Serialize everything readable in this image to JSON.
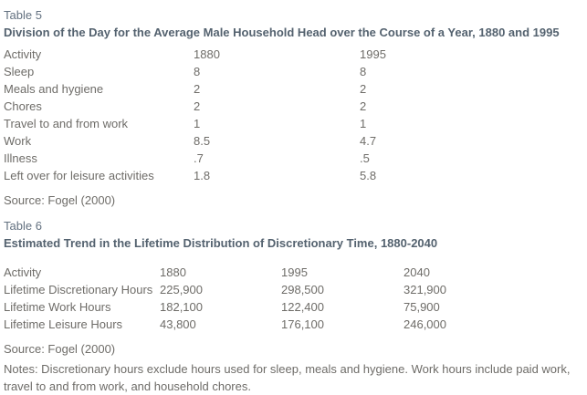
{
  "colors": {
    "background": "#ffffff",
    "body_text": "#6e6c68",
    "table_label": "#637180",
    "table_title": "#54626f"
  },
  "table5": {
    "label": "Table 5",
    "title": "Division of the Day for the Average Male Household Head over the Course of a Year, 1880 and 1995",
    "columns": [
      "Activity",
      "1880",
      "1995"
    ],
    "rows": [
      [
        "Sleep",
        "8",
        "8"
      ],
      [
        "Meals and hygiene",
        "2",
        "2"
      ],
      [
        "Chores",
        "2",
        "2"
      ],
      [
        "Travel to and from work",
        "1",
        "1"
      ],
      [
        "Work",
        "8.5",
        "4.7"
      ],
      [
        "Illness",
        ".7",
        ".5"
      ],
      [
        "Left over for leisure activities",
        "1.8",
        "5.8"
      ]
    ],
    "source": "Source: Fogel (2000)"
  },
  "table6": {
    "label": "Table 6",
    "title": "Estimated Trend in the Lifetime Distribution of Discretionary Time, 1880-2040",
    "columns": [
      "Activity",
      "1880",
      "1995",
      "2040"
    ],
    "rows": [
      [
        "Lifetime Discretionary Hours",
        "225,900",
        "298,500",
        "321,900"
      ],
      [
        "Lifetime Work Hours",
        "182,100",
        "122,400",
        "75,900"
      ],
      [
        "Lifetime Leisure Hours",
        "43,800",
        "176,100",
        "246,000"
      ]
    ],
    "source": "Source: Fogel (2000)",
    "notes": "Notes: Discretionary hours exclude hours used for sleep, meals and hygiene. Work hours include paid work, travel to and from work, and household chores."
  }
}
